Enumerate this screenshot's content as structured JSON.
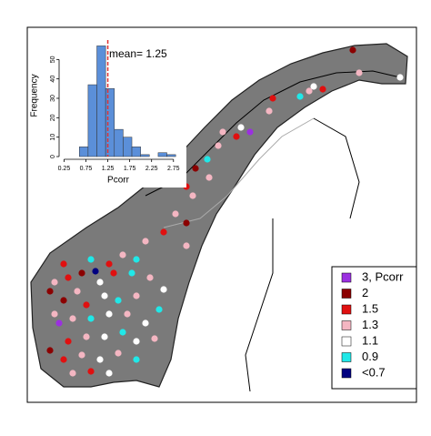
{
  "chart_data": {
    "type": "histogram",
    "xlabel": "Pcorr",
    "ylabel": "Frequency",
    "bins": [
      0.6,
      0.8,
      1.0,
      1.2,
      1.4,
      1.6,
      1.8,
      2.0,
      2.2,
      2.4,
      2.6,
      2.8
    ],
    "values": [
      5,
      37,
      57,
      35,
      14,
      10,
      5,
      1,
      0,
      2,
      1
    ],
    "color": "#5b8fd9",
    "xlim": [
      0.2,
      2.9
    ],
    "xticks": [
      0.25,
      0.75,
      1.25,
      1.75,
      2.25,
      2.75
    ],
    "ylim": [
      0,
      60
    ],
    "yticks": [
      0,
      10,
      20,
      30,
      40,
      50
    ],
    "mean": 1.25,
    "mean_color": "#e03030",
    "annotation": "mean= 1.25"
  },
  "legend": {
    "items": [
      {
        "label": "3, Pcorr",
        "color": "#9b30e0"
      },
      {
        "label": "2",
        "color": "#8b0000"
      },
      {
        "label": "1.5",
        "color": "#e01010"
      },
      {
        "label": "1.3",
        "color": "#f4b6c2"
      },
      {
        "label": "1.1",
        "color": "#ffffff"
      },
      {
        "label": "0.9",
        "color": "#20e8e8"
      },
      {
        "label": "<0.7",
        "color": "#000080"
      }
    ]
  }
}
